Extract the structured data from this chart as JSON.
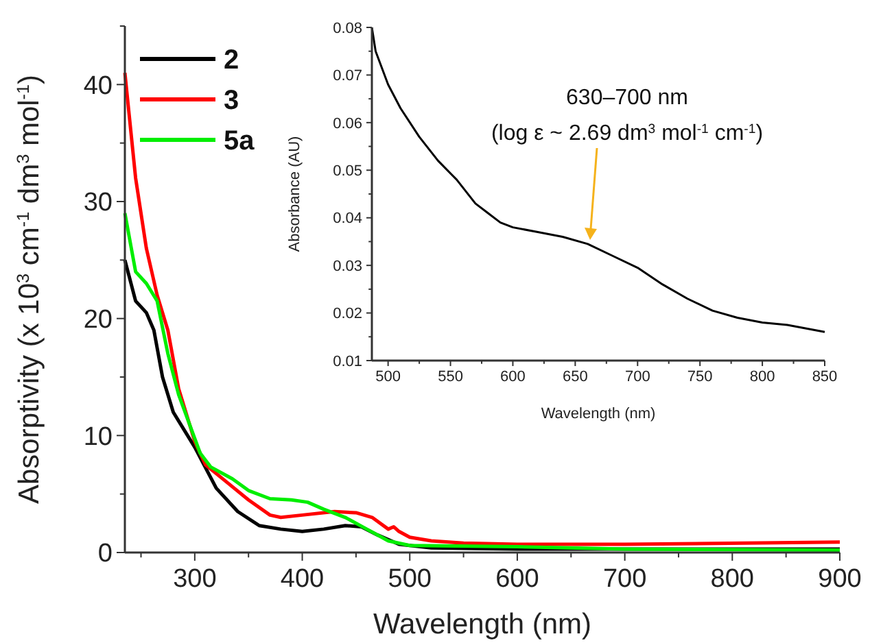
{
  "chart_data": [
    {
      "type": "line",
      "xlabel": "Wavelength (nm)",
      "ylabel": "Absorptivity (x 10$^{3}$ cm$^{-1}$ dm$^{3}$ mol$^{-1}$)",
      "xlim": [
        235,
        900
      ],
      "ylim": [
        0,
        45
      ],
      "xticks": [
        {
          "value": 250,
          "label": null
        },
        300,
        {
          "value": 350,
          "label": null
        },
        400,
        {
          "value": 450,
          "label": null
        },
        500,
        {
          "value": 550,
          "label": null
        },
        600,
        {
          "value": 650,
          "label": null
        },
        700,
        {
          "value": 750,
          "label": null
        },
        800,
        {
          "value": 850,
          "label": null
        },
        900
      ],
      "yticks": [
        0,
        {
          "value": 5,
          "label": null
        },
        10,
        {
          "value": 15,
          "label": null
        },
        20,
        {
          "value": 25,
          "label": null
        },
        30,
        {
          "value": 35,
          "label": null
        },
        40,
        {
          "value": 45,
          "label": null
        }
      ],
      "legend": "top left",
      "grid": false,
      "line_style": "solid",
      "marker": "none",
      "series": [
        {
          "name": "2",
          "color": "#000000",
          "x": [
            235,
            245,
            255,
            262,
            270,
            280,
            300,
            320,
            340,
            360,
            380,
            400,
            420,
            440,
            455,
            470,
            490,
            520,
            600,
            900
          ],
          "values": [
            25,
            21.5,
            20.5,
            19,
            15,
            12,
            9,
            5.5,
            3.5,
            2.3,
            2,
            1.8,
            2,
            2.3,
            2.2,
            1.5,
            0.7,
            0.4,
            0.3,
            0.3
          ]
        },
        {
          "name": "3",
          "color": "#ff0000",
          "x": [
            235,
            245,
            255,
            265,
            275,
            285,
            300,
            310,
            330,
            350,
            370,
            380,
            400,
            430,
            450,
            465,
            480,
            485,
            490,
            500,
            520,
            550,
            600,
            700,
            900
          ],
          "values": [
            41,
            32,
            26,
            22,
            19,
            14,
            9.5,
            7.5,
            6,
            4.5,
            3.2,
            3,
            3.2,
            3.5,
            3.4,
            3,
            2,
            2.2,
            1.8,
            1.3,
            1,
            0.8,
            0.7,
            0.7,
            0.9
          ]
        },
        {
          "name": "5a",
          "color": "#00ee00",
          "x": [
            235,
            245,
            255,
            265,
            275,
            285,
            295,
            305,
            315,
            335,
            350,
            370,
            390,
            405,
            420,
            440,
            460,
            480,
            500,
            600,
            700,
            900
          ],
          "values": [
            29,
            24,
            23,
            21.5,
            17,
            13.5,
            11,
            8.5,
            7.3,
            6.3,
            5.3,
            4.6,
            4.5,
            4.3,
            3.7,
            3,
            2,
            1,
            0.6,
            0.5,
            0.3,
            0.2
          ]
        }
      ]
    },
    {
      "type": "line",
      "xlabel": "Wavelength (nm)",
      "ylabel": "Absorbance (AU)",
      "xlim": [
        487,
        850
      ],
      "ylim": [
        0.01,
        0.08
      ],
      "xticks": [
        500,
        {
          "value": 525,
          "label": null
        },
        550,
        {
          "value": 575,
          "label": null
        },
        600,
        {
          "value": 625,
          "label": null
        },
        650,
        {
          "value": 675,
          "label": null
        },
        700,
        {
          "value": 725,
          "label": null
        },
        750,
        {
          "value": 775,
          "label": null
        },
        800,
        {
          "value": 825,
          "label": null
        },
        850
      ],
      "yticks": [
        0.01,
        {
          "value": 0.015,
          "label": null
        },
        0.02,
        {
          "value": 0.025,
          "label": null
        },
        0.03,
        {
          "value": 0.035,
          "label": null
        },
        0.04,
        {
          "value": 0.045,
          "label": null
        },
        0.05,
        {
          "value": 0.055,
          "label": null
        },
        0.06,
        {
          "value": 0.065,
          "label": null
        },
        0.07,
        {
          "value": 0.075,
          "label": null
        },
        0.08
      ],
      "grid": false,
      "line_style": "solid",
      "marker": "none",
      "annotations": [
        "630–700 nm\n(log ε ~ 2.69 dm$^{3}$ mol$^{-1}$ cm$^{-1}$)"
      ],
      "series": [
        {
          "color": "#000000",
          "x": [
            487,
            490,
            500,
            510,
            525,
            540,
            555,
            570,
            580,
            590,
            600,
            620,
            640,
            660,
            680,
            700,
            720,
            740,
            760,
            780,
            800,
            820,
            850
          ],
          "values": [
            0.08,
            0.075,
            0.068,
            0.063,
            0.057,
            0.052,
            0.048,
            0.043,
            0.041,
            0.039,
            0.038,
            0.037,
            0.036,
            0.0345,
            0.032,
            0.0295,
            0.026,
            0.023,
            0.0205,
            0.019,
            0.018,
            0.0175,
            0.016
          ]
        }
      ]
    }
  ]
}
